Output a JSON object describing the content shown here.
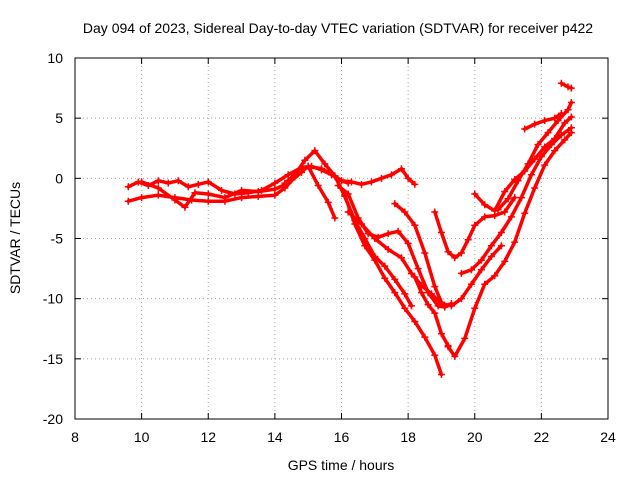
{
  "chart_data": {
    "type": "scatter",
    "title": "Day 094 of 2023, Sidereal Day-to-day VTEC variation (SDTVAR) for receiver p422",
    "xlabel": "GPS time / hours",
    "ylabel": "SDTVAR / TECUs",
    "xlim": [
      8,
      24
    ],
    "ylim": [
      -20,
      10
    ],
    "xticks": [
      "8",
      "10",
      "12",
      "14",
      "16",
      "18",
      "20",
      "22",
      "24"
    ],
    "yticks": [
      "10",
      "5",
      "0",
      "-5",
      "-10",
      "-15",
      "-20"
    ],
    "grid": true,
    "marker": "plus",
    "color": "#ff0000",
    "series": [
      {
        "x": [
          9.6,
          9.9,
          10.2,
          10.5,
          10.8,
          11.1,
          11.4,
          11.7,
          12.0,
          12.4,
          12.8,
          13.2,
          13.6,
          14.0,
          14.4,
          14.8,
          15.1,
          15.4,
          15.7,
          16.0,
          16.2
        ],
        "y": [
          -0.7,
          -0.3,
          -0.6,
          -0.2,
          -0.4,
          -0.2,
          -0.7,
          -0.5,
          -0.3,
          -1.0,
          -1.3,
          -1.2,
          -1.0,
          -0.4,
          0.3,
          0.9,
          1.0,
          0.7,
          0.3,
          -0.2,
          -0.4
        ]
      },
      {
        "x": [
          9.6,
          10.0,
          10.5,
          11.0,
          11.5,
          12.0,
          12.5,
          13.0,
          13.5,
          14.0,
          14.3,
          14.6,
          15.0,
          15.3,
          15.6,
          15.8
        ],
        "y": [
          -1.9,
          -1.6,
          -1.4,
          -1.6,
          -1.8,
          -1.9,
          -1.9,
          -1.6,
          -1.5,
          -1.4,
          -0.8,
          0.1,
          1.0,
          -0.6,
          -2.0,
          -3.3
        ]
      },
      {
        "x": [
          10.0,
          10.5,
          11.0,
          11.3,
          11.6,
          12.0,
          12.5,
          13.0,
          13.5,
          14.0,
          14.4,
          14.8
        ],
        "y": [
          -0.3,
          -0.8,
          -1.8,
          -2.4,
          -1.2,
          -1.3,
          -1.6,
          -1.0,
          -1.1,
          -0.9,
          -0.4,
          0.5
        ]
      },
      {
        "x": [
          14.3,
          14.6,
          14.9,
          15.2,
          15.5,
          15.8,
          16.0,
          16.3,
          16.6,
          16.9,
          17.2,
          17.5,
          17.8,
          18.0,
          18.2
        ],
        "y": [
          -0.4,
          0.3,
          1.5,
          2.3,
          1.2,
          0.2,
          -0.2,
          -0.3,
          -0.5,
          -0.3,
          0.0,
          0.3,
          0.8,
          0.0,
          -0.5
        ]
      },
      {
        "x": [
          15.0,
          15.4,
          15.8,
          16.1,
          16.4,
          16.7,
          17.0,
          17.3,
          17.6,
          17.9,
          18.1
        ],
        "y": [
          1.0,
          0.8,
          0.2,
          -1.5,
          -3.5,
          -5.0,
          -6.5,
          -7.3,
          -8.4,
          -9.6,
          -10.6
        ]
      },
      {
        "x": [
          15.9,
          16.2,
          16.5,
          16.8,
          17.1,
          17.4,
          17.7,
          18.0,
          18.3,
          18.6,
          18.9,
          19.1,
          19.3
        ],
        "y": [
          -0.6,
          -1.3,
          -3.3,
          -4.6,
          -4.9,
          -4.6,
          -4.4,
          -5.4,
          -7.5,
          -9.5,
          -10.6,
          -10.7,
          -10.4
        ]
      },
      {
        "x": [
          16.2,
          16.6,
          17.0,
          17.4,
          17.8,
          18.1,
          18.4,
          18.7,
          19.0,
          19.3,
          19.6,
          19.9,
          20.2,
          20.5,
          20.8
        ],
        "y": [
          -2.8,
          -3.8,
          -5.0,
          -5.9,
          -6.6,
          -7.9,
          -8.9,
          -9.6,
          -10.4,
          -10.6,
          -10.0,
          -8.8,
          -7.6,
          -6.5,
          -5.6
        ]
      },
      {
        "x": [
          16.1,
          16.4,
          16.7,
          17.0,
          17.3,
          17.6,
          17.9,
          18.2,
          18.5,
          18.8,
          19.0
        ],
        "y": [
          -1.4,
          -3.8,
          -5.6,
          -6.8,
          -8.3,
          -9.5,
          -10.8,
          -11.9,
          -13.2,
          -14.7,
          -16.3
        ]
      },
      {
        "x": [
          17.6,
          17.9,
          18.2,
          18.5,
          18.8,
          19.0
        ],
        "y": [
          -2.1,
          -2.8,
          -3.9,
          -6.2,
          -9.0,
          -10.3
        ]
      },
      {
        "x": [
          18.2,
          18.4,
          18.6,
          18.8,
          19.0,
          19.2
        ],
        "y": [
          -8.2,
          -9.5,
          -10.5,
          -11.2,
          -12.9,
          -13.9
        ]
      },
      {
        "x": [
          18.8,
          19.0,
          19.2,
          19.4,
          19.6,
          19.8,
          20.0,
          20.3,
          20.6,
          20.9,
          21.2
        ],
        "y": [
          -2.8,
          -4.5,
          -6.1,
          -6.6,
          -6.2,
          -5.1,
          -3.9,
          -3.2,
          -3.1,
          -2.8,
          -1.6
        ]
      },
      {
        "x": [
          19.2,
          19.4,
          19.7,
          20.0,
          20.3,
          20.6,
          20.9,
          21.2,
          21.5,
          21.8,
          22.1,
          22.4,
          22.7,
          22.9
        ],
        "y": [
          -14.0,
          -14.8,
          -13.3,
          -10.8,
          -8.8,
          -8.1,
          -6.9,
          -5.3,
          -2.9,
          -0.8,
          1.1,
          2.3,
          3.2,
          3.8
        ]
      },
      {
        "x": [
          19.6,
          19.9,
          20.2,
          20.5,
          20.8,
          21.1,
          21.4,
          21.7,
          22.0,
          22.3,
          22.6,
          22.9
        ],
        "y": [
          -7.9,
          -7.6,
          -6.8,
          -5.6,
          -4.5,
          -3.2,
          -1.6,
          0.3,
          1.8,
          2.8,
          3.6,
          4.2
        ]
      },
      {
        "x": [
          20.0,
          20.3,
          20.6,
          20.9,
          21.2,
          21.5,
          21.8,
          22.1,
          22.4,
          22.7,
          22.9
        ],
        "y": [
          -1.3,
          -2.2,
          -2.7,
          -1.1,
          -0.1,
          0.6,
          1.6,
          2.6,
          3.3,
          4.6,
          5.1
        ]
      },
      {
        "x": [
          20.7,
          21.0,
          21.3,
          21.6,
          21.9,
          22.2,
          22.5,
          22.8,
          22.9
        ],
        "y": [
          -2.6,
          -1.7,
          -0.2,
          1.2,
          2.8,
          3.8,
          4.8,
          5.7,
          6.3
        ]
      },
      {
        "x": [
          21.5,
          21.8,
          22.1,
          22.4,
          22.6
        ],
        "y": [
          4.1,
          4.5,
          4.8,
          5.0,
          5.4
        ]
      },
      {
        "x": [
          22.6,
          22.8,
          22.9
        ],
        "y": [
          7.9,
          7.6,
          7.5
        ]
      }
    ]
  }
}
